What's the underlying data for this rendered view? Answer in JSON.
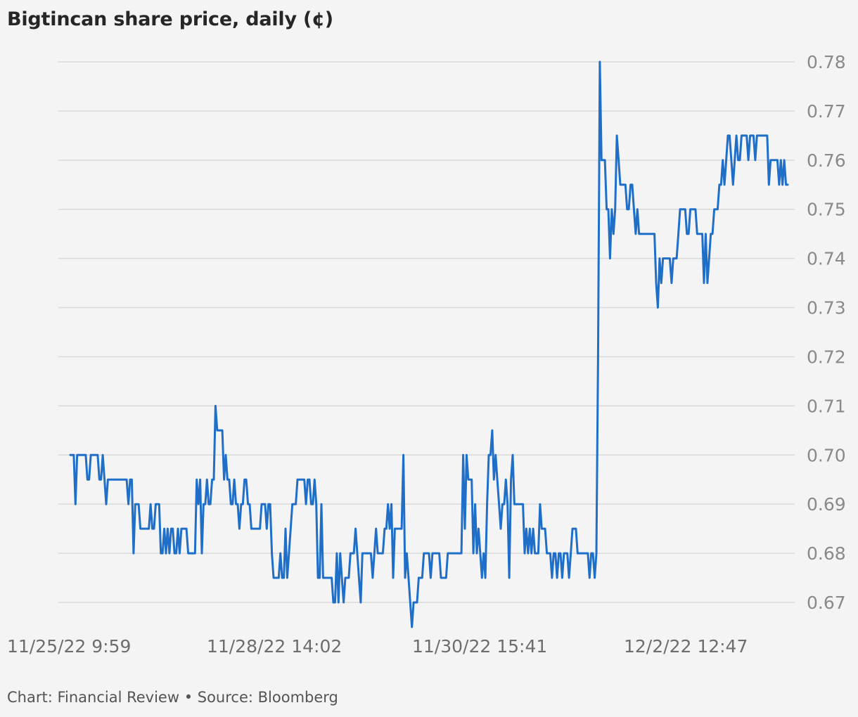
{
  "chart_data": {
    "type": "line",
    "title": "Bigtincan share price, daily (¢)",
    "xlabel": "",
    "ylabel": "",
    "ylim": [
      0.665,
      0.78
    ],
    "y_ticks": [
      "0.78",
      "0.77",
      "0.76",
      "0.75",
      "0.74",
      "0.73",
      "0.72",
      "0.71",
      "0.70",
      "0.69",
      "0.68",
      "0.67"
    ],
    "x_tick_labels": [
      "11/25/22 9:59",
      "11/28/22 14:02",
      "11/30/22 15:41",
      "12/2/22 12:47"
    ],
    "y_axis_position": "right",
    "grid": true,
    "legend": "none",
    "colors": {
      "line": "#1f6fc9",
      "grid": "#d9d9d9",
      "background": "#f4f4f4"
    },
    "series": [
      {
        "values": [
          0.7,
          0.7,
          0.7,
          0.69,
          0.7,
          0.7,
          0.7,
          0.7,
          0.7,
          0.7,
          0.695,
          0.695,
          0.7,
          0.7,
          0.7,
          0.7,
          0.7,
          0.695,
          0.695,
          0.7,
          0.695,
          0.69,
          0.695,
          0.695,
          0.695,
          0.695,
          0.695,
          0.695,
          0.695,
          0.695,
          0.695,
          0.695,
          0.695,
          0.695,
          0.69,
          0.695,
          0.695,
          0.68,
          0.69,
          0.69,
          0.69,
          0.685,
          0.685,
          0.685,
          0.685,
          0.685,
          0.685,
          0.69,
          0.685,
          0.685,
          0.69,
          0.69,
          0.69,
          0.68,
          0.68,
          0.685,
          0.68,
          0.685,
          0.68,
          0.685,
          0.685,
          0.68,
          0.68,
          0.685,
          0.68,
          0.685,
          0.685,
          0.685,
          0.685,
          0.68,
          0.68,
          0.68,
          0.68,
          0.68,
          0.695,
          0.69,
          0.695,
          0.68,
          0.69,
          0.69,
          0.695,
          0.69,
          0.69,
          0.695,
          0.695,
          0.71,
          0.705,
          0.705,
          0.705,
          0.705,
          0.695,
          0.7,
          0.695,
          0.695,
          0.69,
          0.69,
          0.695,
          0.69,
          0.69,
          0.685,
          0.69,
          0.69,
          0.695,
          0.695,
          0.69,
          0.69,
          0.685,
          0.685,
          0.685,
          0.685,
          0.685,
          0.685,
          0.69,
          0.69,
          0.69,
          0.685,
          0.69,
          0.69,
          0.68,
          0.675,
          0.675,
          0.675,
          0.675,
          0.68,
          0.675,
          0.675,
          0.685,
          0.675,
          0.68,
          0.685,
          0.69,
          0.69,
          0.69,
          0.695,
          0.695,
          0.695,
          0.695,
          0.695,
          0.69,
          0.695,
          0.695,
          0.69,
          0.69,
          0.695,
          0.69,
          0.675,
          0.675,
          0.69,
          0.675,
          0.675,
          0.675,
          0.675,
          0.675,
          0.675,
          0.67,
          0.67,
          0.68,
          0.67,
          0.68,
          0.675,
          0.67,
          0.675,
          0.675,
          0.675,
          0.68,
          0.68,
          0.68,
          0.685,
          0.68,
          0.675,
          0.67,
          0.68,
          0.68,
          0.68,
          0.68,
          0.68,
          0.68,
          0.675,
          0.68,
          0.685,
          0.68,
          0.68,
          0.68,
          0.68,
          0.685,
          0.685,
          0.69,
          0.685,
          0.69,
          0.675,
          0.685,
          0.685,
          0.685,
          0.685,
          0.685,
          0.7,
          0.675,
          0.68,
          0.675,
          0.67,
          0.665,
          0.67,
          0.67,
          0.67,
          0.675,
          0.675,
          0.675,
          0.68,
          0.68,
          0.68,
          0.68,
          0.675,
          0.68,
          0.68,
          0.68,
          0.68,
          0.68,
          0.675,
          0.675,
          0.675,
          0.675,
          0.68,
          0.68,
          0.68,
          0.68,
          0.68,
          0.68,
          0.68,
          0.68,
          0.68,
          0.7,
          0.685,
          0.7,
          0.695,
          0.695,
          0.695,
          0.68,
          0.69,
          0.68,
          0.685,
          0.68,
          0.675,
          0.68,
          0.675,
          0.69,
          0.7,
          0.7,
          0.705,
          0.695,
          0.7,
          0.695,
          0.69,
          0.685,
          0.69,
          0.69,
          0.695,
          0.69,
          0.675,
          0.695,
          0.7,
          0.69,
          0.69,
          0.69,
          0.69,
          0.69,
          0.69,
          0.68,
          0.685,
          0.68,
          0.685,
          0.68,
          0.685,
          0.68,
          0.68,
          0.68,
          0.69,
          0.685,
          0.685,
          0.685,
          0.68,
          0.68,
          0.68,
          0.675,
          0.68,
          0.68,
          0.675,
          0.68,
          0.68,
          0.675,
          0.68,
          0.68,
          0.68,
          0.675,
          0.68,
          0.685,
          0.685,
          0.685,
          0.68,
          0.68,
          0.68,
          0.68,
          0.68,
          0.68,
          0.68,
          0.675,
          0.68,
          0.68,
          0.675,
          0.68,
          0.72,
          0.78,
          0.76,
          0.76,
          0.76,
          0.75,
          0.75,
          0.74,
          0.75,
          0.745,
          0.75,
          0.765,
          0.76,
          0.755,
          0.755,
          0.755,
          0.755,
          0.75,
          0.75,
          0.755,
          0.755,
          0.75,
          0.745,
          0.75,
          0.745,
          0.745,
          0.745,
          0.745,
          0.745,
          0.745,
          0.745,
          0.745,
          0.745,
          0.745,
          0.735,
          0.73,
          0.74,
          0.735,
          0.74,
          0.74,
          0.74,
          0.74,
          0.74,
          0.735,
          0.74,
          0.74,
          0.74,
          0.745,
          0.75,
          0.75,
          0.75,
          0.75,
          0.745,
          0.745,
          0.75,
          0.75,
          0.75,
          0.75,
          0.745,
          0.745,
          0.745,
          0.745,
          0.735,
          0.745,
          0.735,
          0.74,
          0.745,
          0.745,
          0.75,
          0.75,
          0.75,
          0.755,
          0.755,
          0.76,
          0.755,
          0.76,
          0.765,
          0.765,
          0.76,
          0.755,
          0.76,
          0.765,
          0.76,
          0.76,
          0.765,
          0.765,
          0.765,
          0.765,
          0.76,
          0.765,
          0.765,
          0.765,
          0.76,
          0.765,
          0.765,
          0.765,
          0.765,
          0.765,
          0.765,
          0.765,
          0.755,
          0.76,
          0.76,
          0.76,
          0.76,
          0.76,
          0.755,
          0.76,
          0.755,
          0.76,
          0.755,
          0.755
        ]
      }
    ]
  },
  "footer": {
    "text": "Chart: Financial Review • Source: Bloomberg"
  }
}
